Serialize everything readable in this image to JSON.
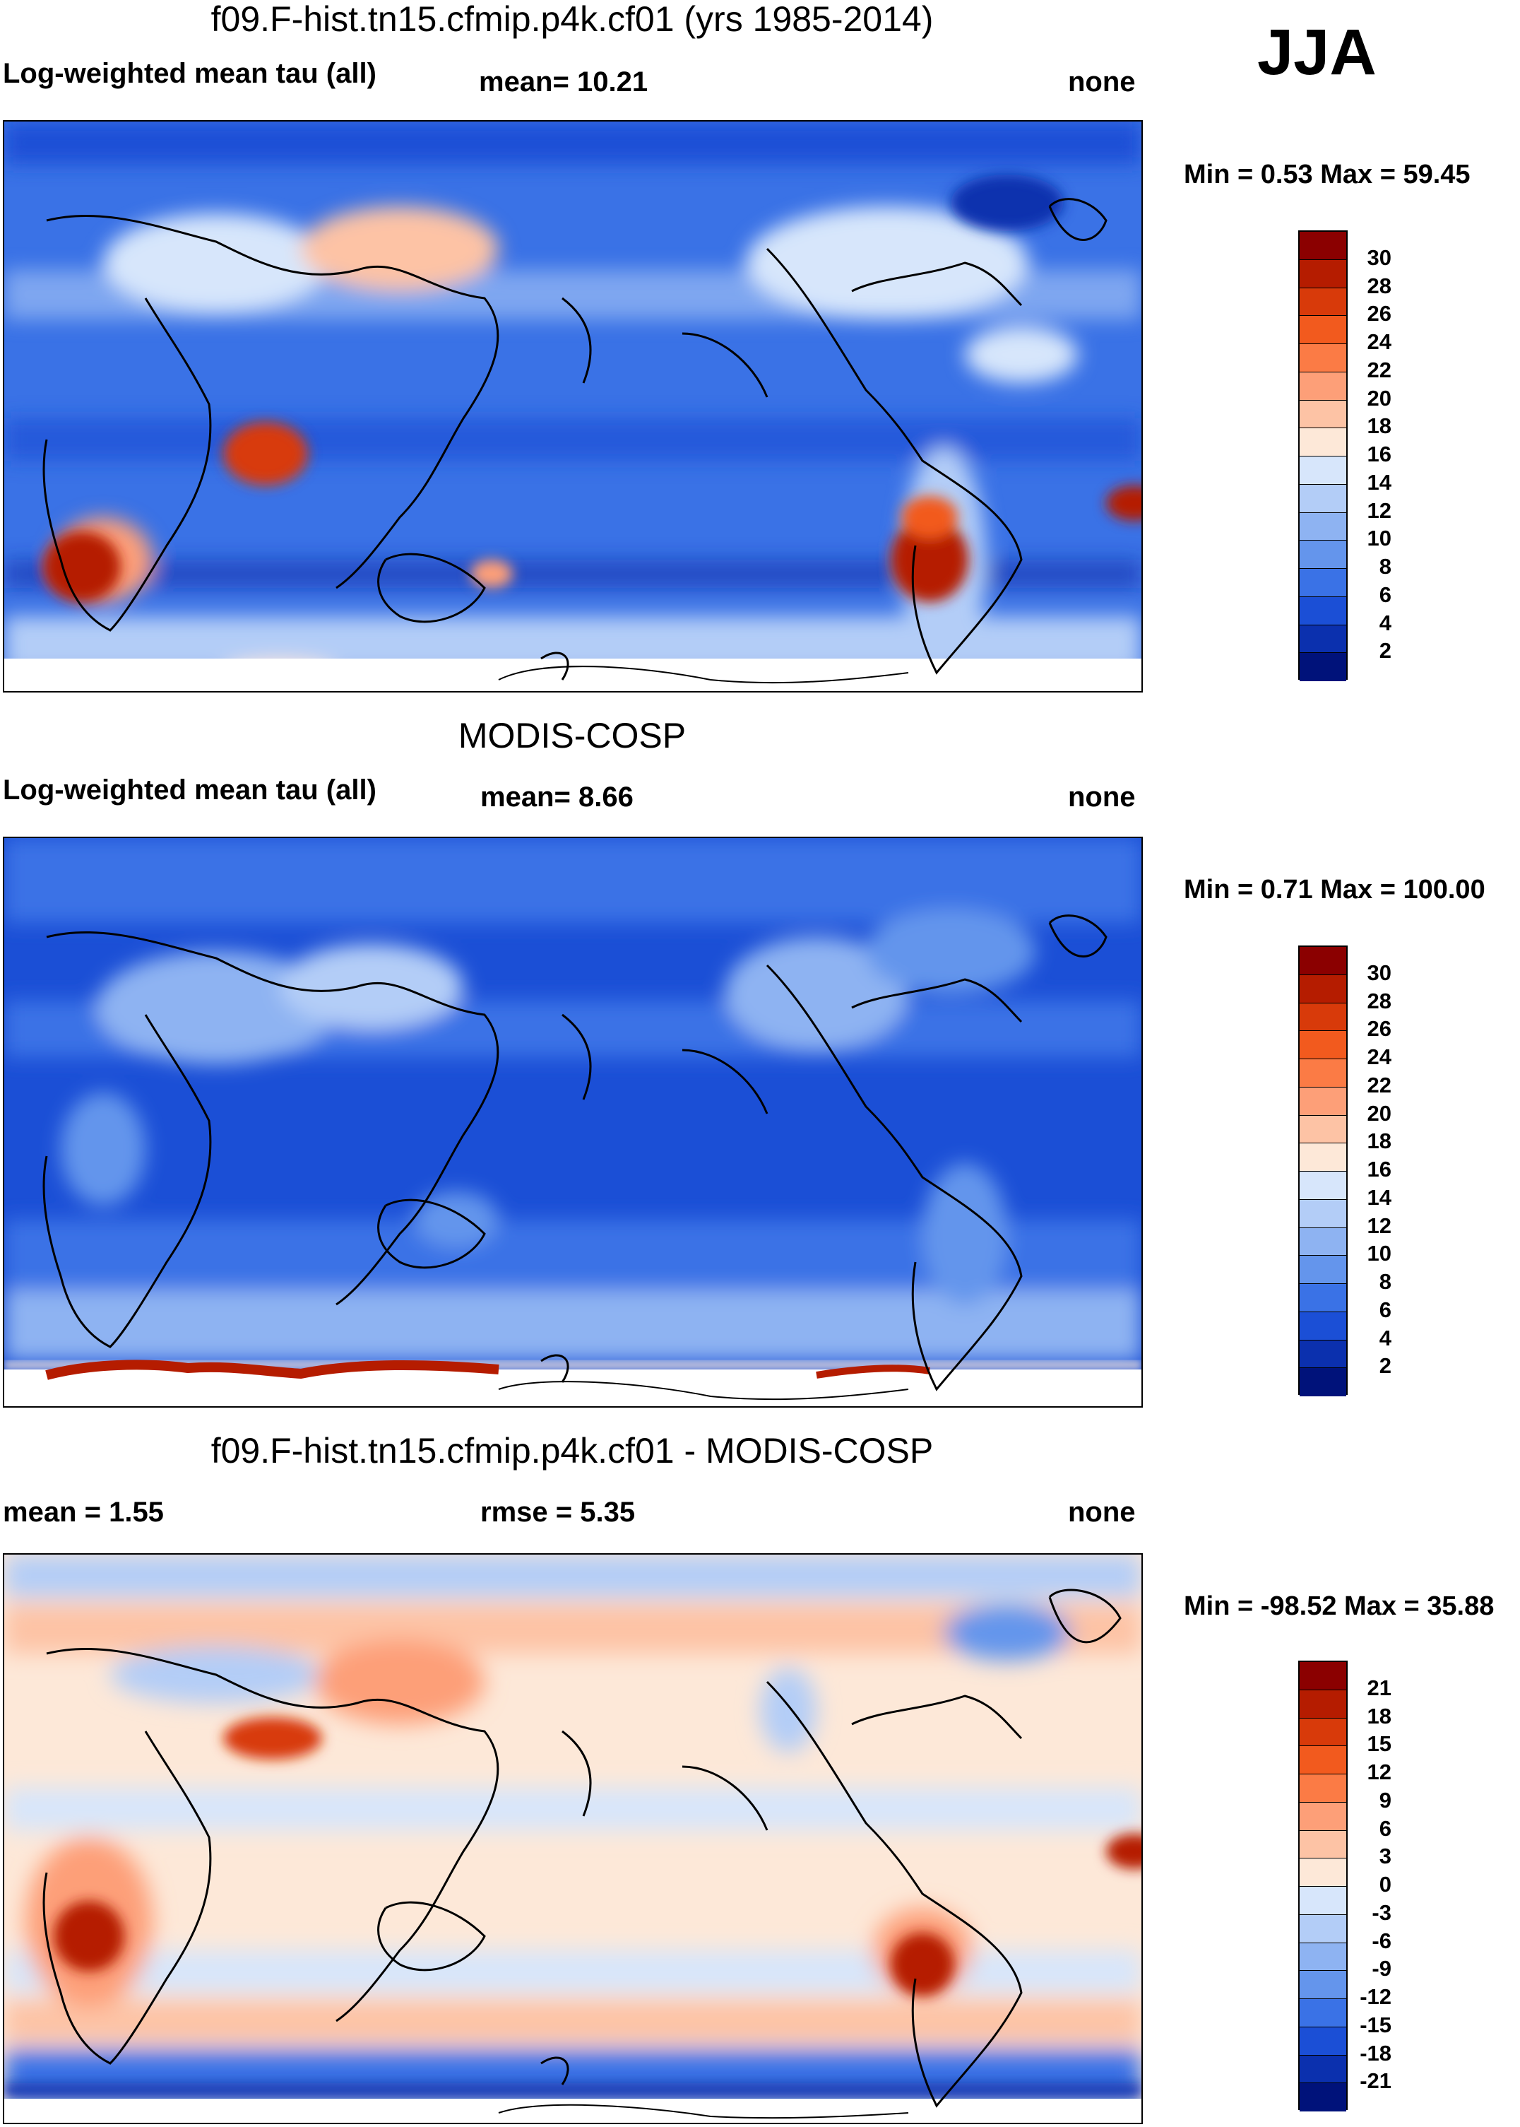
{
  "season": "JJA",
  "panels": [
    {
      "id": "model",
      "title": "f09.F-hist.tn15.cfmip.p4k.cf01 (yrs 1985-2014)",
      "left_label": "Log-weighted mean tau (all)",
      "center_label": "mean=  10.21",
      "right_label": "none",
      "minmax": "Min =   0.53 Max =  59.45",
      "colorbar": {
        "labels": [
          "30",
          "28",
          "26",
          "24",
          "22",
          "20",
          "18",
          "16",
          "14",
          "12",
          "10",
          "8",
          "6",
          "4",
          "2"
        ],
        "colors": [
          "#8b0000",
          "#b51c00",
          "#d83a0a",
          "#f25a1e",
          "#fb7b45",
          "#fd9f78",
          "#fdc3a5",
          "#fde8d8",
          "#d7e6fb",
          "#b3cdf7",
          "#8eb3f2",
          "#6495ec",
          "#3a72e6",
          "#1b4fd6",
          "#0b30ae",
          "#00127a"
        ]
      }
    },
    {
      "id": "obs",
      "title": "MODIS-COSP",
      "left_label": "Log-weighted mean tau (all)",
      "center_label": "mean=   8.66",
      "right_label": "none",
      "minmax": "Min =   0.71 Max = 100.00",
      "colorbar": {
        "labels": [
          "30",
          "28",
          "26",
          "24",
          "22",
          "20",
          "18",
          "16",
          "14",
          "12",
          "10",
          "8",
          "6",
          "4",
          "2"
        ],
        "colors": [
          "#8b0000",
          "#b51c00",
          "#d83a0a",
          "#f25a1e",
          "#fb7b45",
          "#fd9f78",
          "#fdc3a5",
          "#fde8d8",
          "#d7e6fb",
          "#b3cdf7",
          "#8eb3f2",
          "#6495ec",
          "#3a72e6",
          "#1b4fd6",
          "#0b30ae",
          "#00127a"
        ]
      }
    },
    {
      "id": "diff",
      "title": "f09.F-hist.tn15.cfmip.p4k.cf01 - MODIS-COSP",
      "left_label": "mean =   1.55",
      "center_label": "rmse =   5.35",
      "right_label": "none",
      "minmax": "Min = -98.52 Max =  35.88",
      "colorbar": {
        "labels": [
          "21",
          "18",
          "15",
          "12",
          "9",
          "6",
          "3",
          "0",
          "-3",
          "-6",
          "-9",
          "-12",
          "-15",
          "-18",
          "-21"
        ],
        "colors": [
          "#8b0000",
          "#b51c00",
          "#d83a0a",
          "#f25a1e",
          "#fb7b45",
          "#fd9f78",
          "#fdc3a5",
          "#fde8d8",
          "#d7e6fb",
          "#b3cdf7",
          "#8eb3f2",
          "#6495ec",
          "#3a72e6",
          "#1b4fd6",
          "#0b30ae",
          "#00127a"
        ]
      }
    }
  ]
}
